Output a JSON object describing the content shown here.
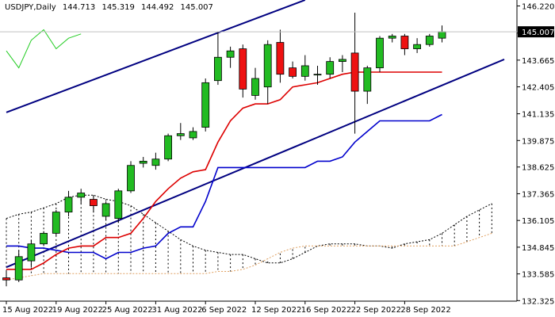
{
  "header": {
    "symbol": "USDJPY,Daily",
    "open": "144.713",
    "high": "145.319",
    "low": "144.492",
    "close": "145.007"
  },
  "current_price_label": "145.007",
  "colors": {
    "bull": "#22bb22",
    "bear": "#ee1111",
    "kijun": "#dd0000",
    "tenkan": "#0000cc",
    "chikou": "#22cc22",
    "channel": "#000080",
    "senkou_b": "#e0a060",
    "cloud_edge": "#000000"
  },
  "chart_data": {
    "type": "candlestick",
    "y_range": [
      132.3,
      146.5
    ],
    "y_ticks": [
      "146.220",
      "144.940",
      "143.665",
      "142.405",
      "141.135",
      "139.875",
      "138.625",
      "137.365",
      "136.105",
      "134.845",
      "133.585",
      "132.325"
    ],
    "x_tick_labels": [
      "15 Aug 2022",
      "19 Aug 2022",
      "25 Aug 2022",
      "31 Aug 2022",
      "6 Sep 2022",
      "12 Sep 2022",
      "16 Sep 2022",
      "22 Sep 2022",
      "28 Sep 2022"
    ],
    "x_tick_index": [
      0,
      4,
      8,
      12,
      16,
      20,
      24,
      28,
      32
    ],
    "total_slots": 41,
    "candles": [
      {
        "o": 133.4,
        "h": 133.7,
        "l": 133.0,
        "c": 133.3
      },
      {
        "o": 133.3,
        "h": 134.7,
        "l": 133.2,
        "c": 134.4
      },
      {
        "o": 134.2,
        "h": 135.2,
        "l": 133.9,
        "c": 135.0
      },
      {
        "o": 135.0,
        "h": 135.6,
        "l": 134.9,
        "c": 135.5
      },
      {
        "o": 135.5,
        "h": 136.6,
        "l": 135.4,
        "c": 136.5
      },
      {
        "o": 136.5,
        "h": 137.5,
        "l": 136.3,
        "c": 137.2
      },
      {
        "o": 137.2,
        "h": 137.6,
        "l": 136.9,
        "c": 137.4
      },
      {
        "o": 137.1,
        "h": 137.3,
        "l": 136.5,
        "c": 136.8
      },
      {
        "o": 136.3,
        "h": 137.0,
        "l": 136.1,
        "c": 136.9
      },
      {
        "o": 136.2,
        "h": 137.6,
        "l": 136.0,
        "c": 137.5
      },
      {
        "o": 137.5,
        "h": 138.9,
        "l": 137.4,
        "c": 138.7
      },
      {
        "o": 138.8,
        "h": 139.1,
        "l": 138.6,
        "c": 138.9
      },
      {
        "o": 138.7,
        "h": 139.3,
        "l": 138.5,
        "c": 139.0
      },
      {
        "o": 139.0,
        "h": 140.2,
        "l": 138.9,
        "c": 140.1
      },
      {
        "o": 140.1,
        "h": 140.7,
        "l": 139.9,
        "c": 140.2
      },
      {
        "o": 140.0,
        "h": 140.5,
        "l": 139.9,
        "c": 140.3
      },
      {
        "o": 140.5,
        "h": 142.8,
        "l": 140.3,
        "c": 142.6
      },
      {
        "o": 142.7,
        "h": 145.0,
        "l": 142.5,
        "c": 143.8
      },
      {
        "o": 143.8,
        "h": 144.3,
        "l": 143.3,
        "c": 144.1
      },
      {
        "o": 144.2,
        "h": 144.4,
        "l": 141.9,
        "c": 142.3
      },
      {
        "o": 142.0,
        "h": 143.3,
        "l": 141.8,
        "c": 142.8
      },
      {
        "o": 142.4,
        "h": 144.6,
        "l": 141.6,
        "c": 144.4
      },
      {
        "o": 144.5,
        "h": 145.1,
        "l": 142.6,
        "c": 143.0
      },
      {
        "o": 143.3,
        "h": 143.6,
        "l": 142.8,
        "c": 142.9
      },
      {
        "o": 142.9,
        "h": 143.9,
        "l": 142.7,
        "c": 143.4
      },
      {
        "o": 143.0,
        "h": 143.4,
        "l": 142.5,
        "c": 143.0
      },
      {
        "o": 143.0,
        "h": 143.8,
        "l": 142.8,
        "c": 143.6
      },
      {
        "o": 143.6,
        "h": 143.9,
        "l": 143.1,
        "c": 143.7
      },
      {
        "o": 144.0,
        "h": 145.9,
        "l": 140.2,
        "c": 142.2
      },
      {
        "o": 142.2,
        "h": 143.4,
        "l": 141.6,
        "c": 143.3
      },
      {
        "o": 143.3,
        "h": 144.8,
        "l": 143.1,
        "c": 144.7
      },
      {
        "o": 144.7,
        "h": 144.9,
        "l": 144.5,
        "c": 144.8
      },
      {
        "o": 144.8,
        "h": 144.9,
        "l": 143.9,
        "c": 144.2
      },
      {
        "o": 144.2,
        "h": 144.7,
        "l": 144.0,
        "c": 144.4
      },
      {
        "o": 144.4,
        "h": 144.9,
        "l": 144.3,
        "c": 144.8
      },
      {
        "o": 144.7,
        "h": 145.3,
        "l": 144.5,
        "c": 145.0
      }
    ],
    "kijun_sen": [
      133.8,
      133.8,
      133.8,
      134.1,
      134.5,
      134.8,
      134.9,
      134.9,
      135.3,
      135.3,
      135.5,
      136.2,
      137.0,
      137.6,
      138.1,
      138.4,
      138.5,
      139.8,
      140.8,
      141.4,
      141.6,
      141.6,
      141.8,
      142.4,
      142.5,
      142.6,
      142.8,
      143.0,
      143.1,
      143.1,
      143.1,
      143.1,
      143.1,
      143.1,
      143.1,
      143.1
    ],
    "tenkan_sen": [
      134.9,
      134.9,
      134.8,
      134.8,
      134.7,
      134.6,
      134.6,
      134.6,
      134.3,
      134.6,
      134.6,
      134.8,
      134.9,
      135.5,
      135.8,
      135.8,
      137.0,
      138.6,
      138.6,
      138.6,
      138.6,
      138.6,
      138.6,
      138.6,
      138.6,
      138.9,
      138.9,
      139.1,
      139.8,
      140.3,
      140.8,
      140.8,
      140.8,
      140.8,
      140.8,
      141.1
    ],
    "chikou_span": [
      144.1,
      143.3,
      144.6,
      145.1,
      144.2,
      144.7,
      144.9
    ],
    "senkou_a": [
      136.2,
      136.4,
      136.5,
      136.7,
      136.9,
      137.2,
      137.3,
      137.3,
      137.1,
      137.0,
      136.8,
      136.4,
      136.0,
      135.6,
      135.2,
      134.9,
      134.7,
      134.6,
      134.5,
      134.5,
      134.3,
      134.1,
      134.1,
      134.3,
      134.6,
      134.9,
      135.0,
      135.0,
      135.0,
      134.9,
      134.9,
      134.8,
      135.0,
      135.1,
      135.2,
      135.5,
      135.9,
      136.3,
      136.6,
      136.9
    ],
    "senkou_b": [
      133.3,
      133.4,
      133.5,
      133.6,
      133.6,
      133.6,
      133.6,
      133.6,
      133.6,
      133.6,
      133.6,
      133.6,
      133.6,
      133.6,
      133.6,
      133.6,
      133.6,
      133.7,
      133.7,
      133.8,
      134.0,
      134.3,
      134.6,
      134.8,
      134.9,
      134.9,
      134.9,
      134.9,
      134.9,
      134.9,
      134.9,
      134.9,
      134.9,
      134.9,
      134.9,
      134.9,
      134.9,
      135.1,
      135.3,
      135.5
    ],
    "channel_upper": [
      {
        "i": 0,
        "p": 141.2
      },
      {
        "i": 24,
        "p": 146.5
      }
    ],
    "channel_lower": [
      {
        "i": 0,
        "p": 133.9
      },
      {
        "i": 40,
        "p": 143.7
      }
    ]
  }
}
